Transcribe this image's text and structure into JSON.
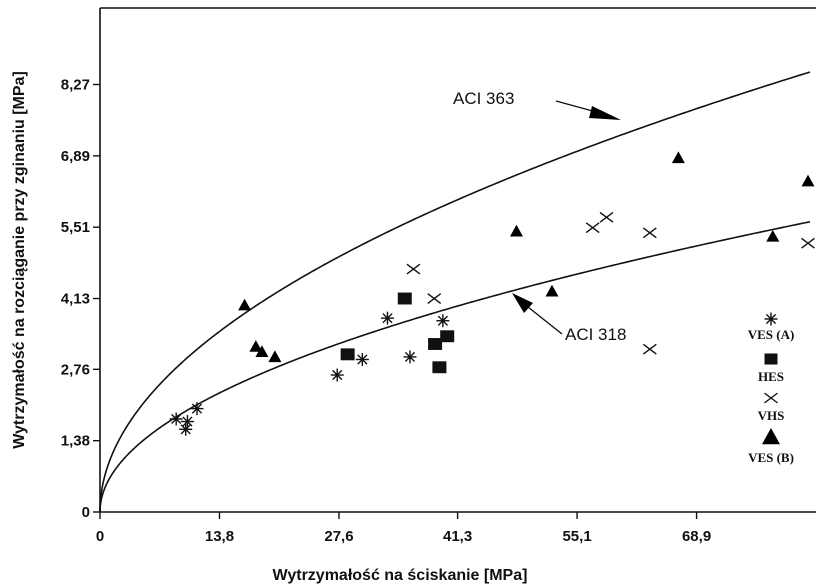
{
  "chart_data": {
    "type": "scatter",
    "xlabel": "Wytrzymałość na ściskanie [MPa]",
    "ylabel": "Wytrzymałość na rozciąganie przy zginaniu [MPa]",
    "xlim": [
      0,
      82
    ],
    "ylim": [
      0,
      9.75
    ],
    "x_ticks": [
      "0",
      "13,8",
      "27,6",
      "41,3",
      "55,1",
      "68,9"
    ],
    "x_tick_values": [
      0,
      13.8,
      27.6,
      41.3,
      55.1,
      68.9
    ],
    "y_ticks": [
      "0",
      "1,38",
      "2,76",
      "4,13",
      "5,51",
      "6,89",
      "8,27"
    ],
    "y_tick_values": [
      0,
      1.38,
      2.76,
      4.13,
      5.51,
      6.89,
      8.27
    ],
    "grid": false,
    "legend_position": "right",
    "curves": [
      {
        "name": "ACI 363",
        "coefficient": 0.94
      },
      {
        "name": "ACI 318",
        "coefficient": 0.62
      }
    ],
    "series": [
      {
        "name": "VES (A)",
        "marker": "asterisk",
        "points": [
          [
            8.8,
            1.8
          ],
          [
            10.1,
            1.75
          ],
          [
            9.9,
            1.6
          ],
          [
            11.2,
            2.0
          ],
          [
            27.4,
            2.65
          ],
          [
            30.3,
            2.95
          ],
          [
            33.2,
            3.75
          ],
          [
            35.8,
            3.0
          ],
          [
            39.6,
            3.7
          ]
        ]
      },
      {
        "name": "HES",
        "marker": "square",
        "points": [
          [
            28.6,
            3.05
          ],
          [
            35.2,
            4.13
          ],
          [
            38.7,
            3.25
          ],
          [
            39.2,
            2.8
          ],
          [
            40.1,
            3.4
          ]
        ]
      },
      {
        "name": "VHS",
        "marker": "x",
        "points": [
          [
            36.2,
            4.7
          ],
          [
            38.6,
            4.13
          ],
          [
            56.9,
            5.5
          ],
          [
            58.5,
            5.7
          ],
          [
            63.5,
            5.4
          ],
          [
            63.5,
            3.15
          ],
          [
            81.8,
            5.2
          ]
        ]
      },
      {
        "name": "VES (B)",
        "marker": "triangle",
        "points": [
          [
            16.7,
            4.0
          ],
          [
            18.0,
            3.2
          ],
          [
            18.7,
            3.1
          ],
          [
            20.2,
            3.0
          ],
          [
            52.2,
            4.27
          ],
          [
            48.1,
            5.43
          ],
          [
            66.8,
            6.85
          ],
          [
            77.7,
            5.33
          ],
          [
            84.0,
            6.4
          ]
        ]
      }
    ]
  }
}
